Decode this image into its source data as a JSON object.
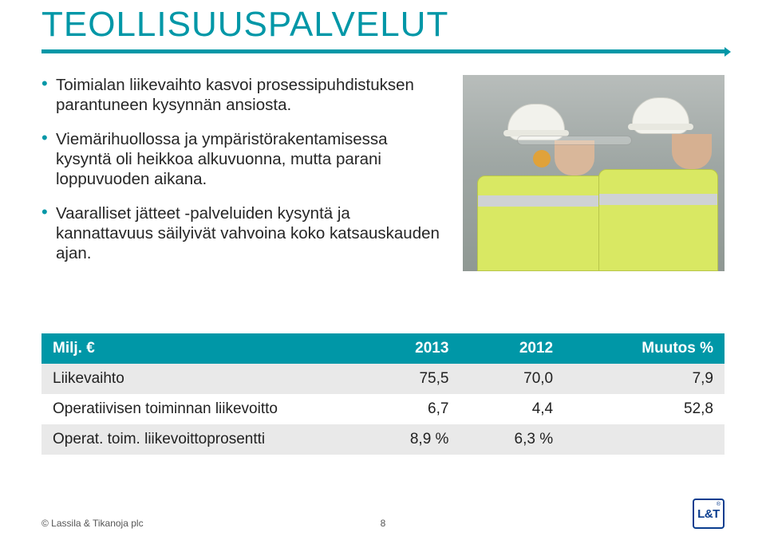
{
  "title": "TEOLLISUUSPALVELUT",
  "title_color": "#0097a7",
  "rule_color": "#0097a7",
  "bullets": [
    "Toimialan liikevaihto kasvoi prosessipuhdistuksen parantuneen kysynnän ansiosta.",
    "Viemärihuollossa ja ympäristörakentamisessa kysyntä oli heikkoa alkuvuonna, mutta parani loppuvuoden aikana.",
    "Vaaralliset jätteet -palveluiden kysyntä ja kannattavuus säilyivät vahvoina koko katsauskauden ajan."
  ],
  "bullet_color": "#0097a7",
  "table": {
    "header_bg": "#0097a7",
    "header_fg": "#ffffff",
    "row_alt_bg": "#e9e9e9",
    "columns": [
      "Milj. €",
      "2013",
      "2012",
      "Muutos %"
    ],
    "rows": [
      [
        "Liikevaihto",
        "75,5",
        "70,0",
        "7,9"
      ],
      [
        "Operatiivisen toiminnan liikevoitto",
        "6,7",
        "4,4",
        "52,8"
      ],
      [
        "Operat. toim. liikevoittoprosentti",
        "8,9 %",
        "6,3 %",
        ""
      ]
    ]
  },
  "footer": {
    "copyright": "© Lassila & Tikanoja plc",
    "page": "8",
    "logo_text": "L&T",
    "logo_reg": "®",
    "logo_color": "#0a3d8f"
  },
  "photo": {
    "bg_gradient": [
      "#b8bdbb",
      "#8f9893"
    ],
    "vest_color": "#d9e863",
    "stripe_color": "#cfd2d4",
    "helmet_color": "#f2f2ec"
  }
}
